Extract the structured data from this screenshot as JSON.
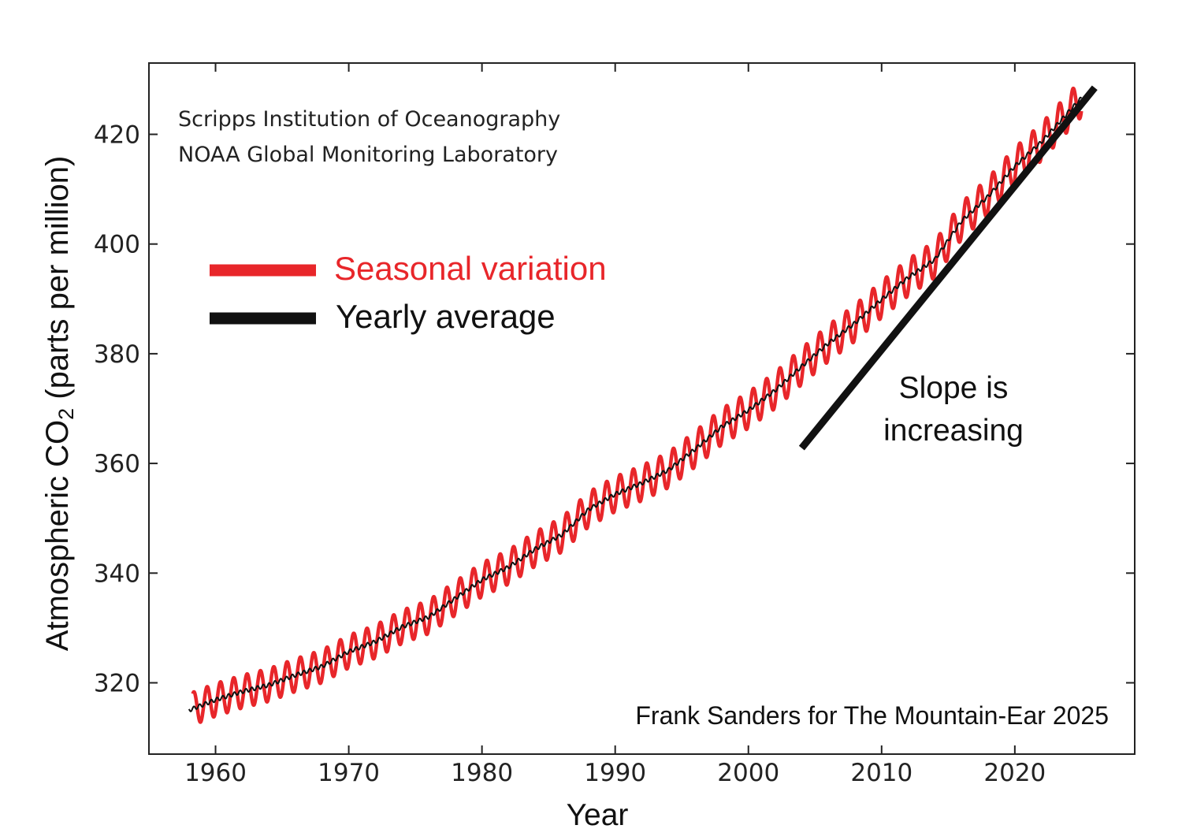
{
  "chart_data": {
    "type": "line",
    "xlabel": "Year",
    "ylabel_main": "Atmospheric CO",
    "ylabel_sub": "2",
    "ylabel_tail": " (parts per million)",
    "xlim": [
      1955,
      2029
    ],
    "ylim": [
      307,
      433
    ],
    "x_ticks": [
      1960,
      1970,
      1980,
      1990,
      2000,
      2010,
      2020
    ],
    "y_ticks": [
      320,
      340,
      360,
      380,
      400,
      420
    ],
    "grid": false,
    "legend_position": "upper-left",
    "source_lines": [
      "Scripps Institution of Oceanography",
      "NOAA Global Monitoring Laboratory"
    ],
    "credit": "Frank Sanders for The Mountain-Ear 2025",
    "annotation": {
      "lines": [
        "Slope is",
        "increasing"
      ],
      "tangent_line": {
        "x": [
          2004,
          2026
        ],
        "y": [
          362.8,
          428.5
        ]
      }
    },
    "series": [
      {
        "name": "Seasonal variation",
        "color": "#e8262a",
        "seasonal_amplitude": [
          [
            1958,
            3.0
          ],
          [
            1970,
            3.0
          ],
          [
            1990,
            3.2
          ],
          [
            2000,
            3.3
          ],
          [
            2025,
            3.4
          ]
        ]
      },
      {
        "name": "Yearly average",
        "color": "#111111",
        "x": [
          1958,
          1960,
          1962,
          1964,
          1966,
          1968,
          1970,
          1972,
          1974,
          1976,
          1978,
          1980,
          1982,
          1984,
          1986,
          1988,
          1990,
          1992,
          1994,
          1996,
          1998,
          2000,
          2002,
          2004,
          2006,
          2008,
          2010,
          2012,
          2014,
          2016,
          2018,
          2020,
          2022,
          2024,
          2025
        ],
        "values": [
          315.0,
          316.9,
          318.4,
          319.6,
          321.4,
          323.0,
          325.7,
          327.5,
          330.2,
          332.0,
          335.4,
          338.8,
          341.1,
          344.4,
          347.0,
          351.6,
          354.4,
          356.4,
          358.8,
          362.6,
          366.7,
          369.7,
          373.3,
          377.7,
          381.9,
          385.6,
          389.9,
          393.9,
          397.2,
          404.2,
          408.7,
          414.2,
          418.6,
          424.0,
          426.6
        ]
      }
    ]
  }
}
